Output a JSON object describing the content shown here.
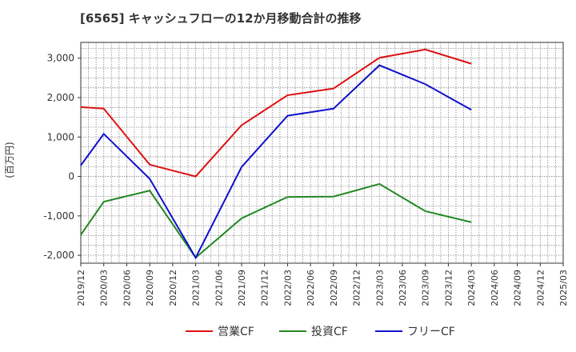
{
  "chart_data": {
    "type": "line",
    "title": "[6565]  キャッシュフローの12か月移動合計の推移",
    "ylabel": "(百万円)",
    "xlabel": "",
    "ylim": [
      -2200,
      3400
    ],
    "yticks": [
      3000,
      2000,
      1000,
      0,
      -1000,
      -2000
    ],
    "ytick_labels": [
      "3,000",
      "2,000",
      "1,000",
      "0",
      "-1,000",
      "-2,000"
    ],
    "x_ticks": [
      "2019/12",
      "2020/03",
      "2020/06",
      "2020/09",
      "2020/12",
      "2021/03",
      "2021/06",
      "2021/09",
      "2021/12",
      "2022/03",
      "2022/06",
      "2022/09",
      "2022/12",
      "2023/03",
      "2023/06",
      "2023/09",
      "2023/12",
      "2024/03",
      "2024/06",
      "2024/09",
      "2024/12",
      "2025/03"
    ],
    "grid": true,
    "legend_position": "bottom",
    "series": [
      {
        "name": "営業CF",
        "color": "#dd1111",
        "x": [
          "2019/12",
          "2020/03",
          "2020/09",
          "2021/03",
          "2021/09",
          "2022/03",
          "2022/09",
          "2023/03",
          "2023/09",
          "2024/03"
        ],
        "values": [
          1760,
          1720,
          300,
          0,
          1300,
          2060,
          2230,
          3010,
          3220,
          2860
        ]
      },
      {
        "name": "投資CF",
        "color": "#228822",
        "x": [
          "2019/12",
          "2020/03",
          "2020/09",
          "2021/03",
          "2021/09",
          "2022/03",
          "2022/09",
          "2023/03",
          "2023/09",
          "2024/03"
        ],
        "values": [
          -1480,
          -640,
          -360,
          -2060,
          -1060,
          -520,
          -510,
          -190,
          -880,
          -1160
        ]
      },
      {
        "name": "フリーCF",
        "color": "#1111cc",
        "x": [
          "2019/12",
          "2020/03",
          "2020/09",
          "2021/03",
          "2021/09",
          "2022/03",
          "2022/09",
          "2023/03",
          "2023/09",
          "2024/03"
        ],
        "values": [
          280,
          1080,
          -60,
          -2060,
          240,
          1540,
          1720,
          2820,
          2340,
          1690
        ]
      }
    ]
  }
}
